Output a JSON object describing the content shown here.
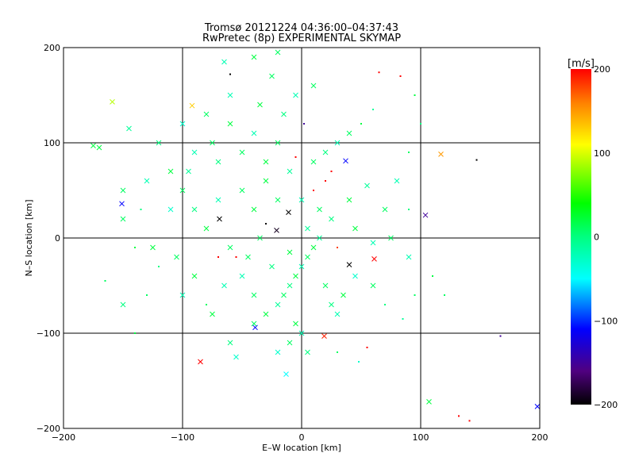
{
  "chart_data": {
    "type": "scatter",
    "title": "Tromsø 20121224 04:36:00–04:37:43",
    "subtitle": "RwPretec (8p) EXPERIMENTAL SKYMAP",
    "xlabel": "E–W location [km]",
    "ylabel": "N–S location [km]",
    "xlim": [
      -200,
      200
    ],
    "ylim": [
      -200,
      200
    ],
    "xticks": [
      -200,
      -100,
      0,
      100,
      200
    ],
    "yticks": [
      -200,
      -100,
      0,
      100,
      200
    ],
    "xtick_labels": [
      "−200",
      "−100",
      "0",
      "100",
      "200"
    ],
    "ytick_labels": [
      "−200",
      "−100",
      "0",
      "100",
      "200"
    ],
    "grid": true,
    "colorbar": {
      "label": "[m/s]",
      "range": [
        -200,
        200
      ],
      "ticks": [
        200,
        100,
        0,
        -100,
        -200
      ],
      "tick_labels": [
        "200",
        "100",
        "0",
        "−100",
        "−200"
      ],
      "stops": [
        [
          200,
          "#ff0000"
        ],
        [
          160,
          "#ff8000"
        ],
        [
          110,
          "#ffff00"
        ],
        [
          40,
          "#00ff00"
        ],
        [
          0,
          "#00ff80"
        ],
        [
          -50,
          "#00ffff"
        ],
        [
          -110,
          "#0000ff"
        ],
        [
          -160,
          "#500080"
        ],
        [
          -200,
          "#000000"
        ]
      ]
    },
    "points_format": "[x_km, y_km, velocity_m_s, marker (1=cross, 0=dot)]",
    "points": [
      [
        117,
        88,
        150,
        1
      ],
      [
        104,
        24,
        -150,
        1
      ],
      [
        107,
        -172,
        20,
        1
      ],
      [
        198,
        -177,
        -110,
        1
      ],
      [
        -85,
        -130,
        200,
        1
      ],
      [
        19,
        -103,
        190,
        1
      ],
      [
        61,
        -22,
        200,
        1
      ],
      [
        40,
        -28,
        -200,
        1
      ],
      [
        -69,
        20,
        -200,
        1
      ],
      [
        -11,
        27,
        -200,
        1
      ],
      [
        -21,
        8,
        -190,
        1
      ],
      [
        -39,
        -94,
        -110,
        1
      ],
      [
        -151,
        36,
        -110,
        1
      ],
      [
        37,
        81,
        -110,
        1
      ],
      [
        -13,
        -143,
        -50,
        1
      ],
      [
        -159,
        143,
        90,
        1
      ],
      [
        -92,
        139,
        130,
        1
      ],
      [
        132,
        -187,
        200,
        0
      ],
      [
        141,
        -192,
        200,
        0
      ],
      [
        167,
        -103,
        -150,
        0
      ],
      [
        147,
        82,
        -200,
        0
      ],
      [
        83,
        170,
        200,
        0
      ],
      [
        65,
        174,
        200,
        0
      ],
      [
        -60,
        172,
        -200,
        0
      ],
      [
        2,
        120,
        -150,
        0
      ],
      [
        25,
        70,
        200,
        0
      ],
      [
        20,
        60,
        200,
        0
      ],
      [
        10,
        50,
        200,
        0
      ],
      [
        -5,
        85,
        200,
        0
      ],
      [
        30,
        -10,
        180,
        0
      ],
      [
        -30,
        15,
        -200,
        0
      ],
      [
        -55,
        -20,
        200,
        0
      ],
      [
        -70,
        -20,
        200,
        0
      ],
      [
        48,
        -130,
        -30,
        0
      ],
      [
        55,
        -115,
        200,
        0
      ],
      [
        -40,
        190,
        20,
        1
      ],
      [
        -25,
        170,
        10,
        1
      ],
      [
        -60,
        150,
        -20,
        1
      ],
      [
        -80,
        130,
        10,
        1
      ],
      [
        -100,
        120,
        -30,
        1
      ],
      [
        -120,
        100,
        0,
        1
      ],
      [
        -110,
        70,
        20,
        1
      ],
      [
        -130,
        60,
        -20,
        1
      ],
      [
        -150,
        50,
        10,
        1
      ],
      [
        -170,
        95,
        20,
        1
      ],
      [
        -145,
        115,
        -10,
        1
      ],
      [
        -150,
        20,
        10,
        1
      ],
      [
        -140,
        -10,
        20,
        0
      ],
      [
        -120,
        -30,
        0,
        0
      ],
      [
        -100,
        -60,
        -20,
        1
      ],
      [
        -80,
        -70,
        10,
        0
      ],
      [
        -75,
        -80,
        20,
        1
      ],
      [
        -60,
        -110,
        0,
        1
      ],
      [
        -55,
        -125,
        -30,
        1
      ],
      [
        -40,
        -90,
        10,
        1
      ],
      [
        -30,
        -80,
        20,
        1
      ],
      [
        -20,
        -70,
        -10,
        1
      ],
      [
        -15,
        -60,
        10,
        1
      ],
      [
        -10,
        -50,
        0,
        1
      ],
      [
        -5,
        -40,
        20,
        1
      ],
      [
        0,
        -30,
        -20,
        1
      ],
      [
        5,
        -20,
        10,
        1
      ],
      [
        10,
        -10,
        20,
        1
      ],
      [
        15,
        0,
        -10,
        1
      ],
      [
        20,
        -50,
        10,
        1
      ],
      [
        25,
        -70,
        0,
        1
      ],
      [
        30,
        -80,
        -20,
        1
      ],
      [
        35,
        -60,
        20,
        1
      ],
      [
        45,
        -40,
        -30,
        1
      ],
      [
        60,
        -50,
        10,
        1
      ],
      [
        70,
        -70,
        0,
        0
      ],
      [
        90,
        -20,
        -20,
        1
      ],
      [
        95,
        -60,
        10,
        0
      ],
      [
        85,
        -85,
        -10,
        0
      ],
      [
        -5,
        -90,
        20,
        1
      ],
      [
        0,
        -100,
        -20,
        1
      ],
      [
        -10,
        -110,
        10,
        1
      ],
      [
        5,
        -120,
        0,
        1
      ],
      [
        -20,
        -120,
        -30,
        1
      ],
      [
        30,
        -120,
        10,
        0
      ],
      [
        -40,
        -60,
        10,
        1
      ],
      [
        -50,
        -40,
        -20,
        1
      ],
      [
        -60,
        -10,
        10,
        1
      ],
      [
        -80,
        10,
        20,
        1
      ],
      [
        -90,
        30,
        0,
        1
      ],
      [
        -70,
        40,
        -20,
        1
      ],
      [
        -50,
        50,
        10,
        1
      ],
      [
        -30,
        60,
        20,
        1
      ],
      [
        -10,
        70,
        -10,
        1
      ],
      [
        10,
        80,
        10,
        1
      ],
      [
        20,
        90,
        0,
        1
      ],
      [
        30,
        100,
        -20,
        1
      ],
      [
        40,
        110,
        10,
        1
      ],
      [
        50,
        120,
        20,
        0
      ],
      [
        60,
        135,
        -10,
        0
      ],
      [
        -20,
        100,
        10,
        1
      ],
      [
        -40,
        110,
        -20,
        1
      ],
      [
        -60,
        120,
        20,
        1
      ],
      [
        -50,
        90,
        10,
        1
      ],
      [
        -70,
        80,
        0,
        1
      ],
      [
        -90,
        90,
        -20,
        1
      ],
      [
        -100,
        50,
        10,
        1
      ],
      [
        -110,
        30,
        -30,
        1
      ],
      [
        -40,
        30,
        20,
        1
      ],
      [
        -20,
        40,
        10,
        1
      ],
      [
        0,
        40,
        -20,
        1
      ],
      [
        15,
        30,
        10,
        1
      ],
      [
        25,
        20,
        0,
        1
      ],
      [
        40,
        40,
        20,
        1
      ],
      [
        55,
        55,
        -10,
        1
      ],
      [
        70,
        30,
        10,
        1
      ],
      [
        80,
        60,
        -20,
        1
      ],
      [
        90,
        90,
        10,
        0
      ],
      [
        -30,
        80,
        20,
        1
      ],
      [
        -15,
        130,
        0,
        1
      ],
      [
        -5,
        150,
        -20,
        1
      ],
      [
        10,
        160,
        10,
        1
      ],
      [
        -35,
        140,
        20,
        1
      ],
      [
        -75,
        100,
        10,
        1
      ],
      [
        -95,
        70,
        -10,
        1
      ],
      [
        -125,
        -10,
        20,
        1
      ],
      [
        -135,
        30,
        0,
        0
      ],
      [
        -105,
        -20,
        10,
        1
      ],
      [
        -90,
        -40,
        20,
        1
      ],
      [
        -65,
        -50,
        -20,
        1
      ],
      [
        -45,
        -20,
        10,
        1
      ],
      [
        -25,
        -30,
        0,
        1
      ],
      [
        -10,
        -15,
        20,
        1
      ],
      [
        5,
        10,
        -10,
        1
      ],
      [
        -35,
        0,
        10,
        1
      ],
      [
        45,
        10,
        20,
        1
      ],
      [
        60,
        -5,
        -20,
        1
      ],
      [
        75,
        0,
        10,
        1
      ],
      [
        90,
        30,
        0,
        0
      ],
      [
        -175,
        97,
        20,
        1
      ],
      [
        -165,
        -45,
        10,
        0
      ],
      [
        -140,
        -100,
        20,
        0
      ],
      [
        -150,
        -70,
        0,
        1
      ],
      [
        -130,
        -60,
        10,
        0
      ],
      [
        95,
        150,
        20,
        0
      ],
      [
        100,
        120,
        0,
        0
      ],
      [
        120,
        -60,
        10,
        0
      ],
      [
        110,
        -40,
        20,
        0
      ],
      [
        -20,
        195,
        10,
        1
      ],
      [
        -65,
        185,
        -20,
        1
      ]
    ]
  }
}
